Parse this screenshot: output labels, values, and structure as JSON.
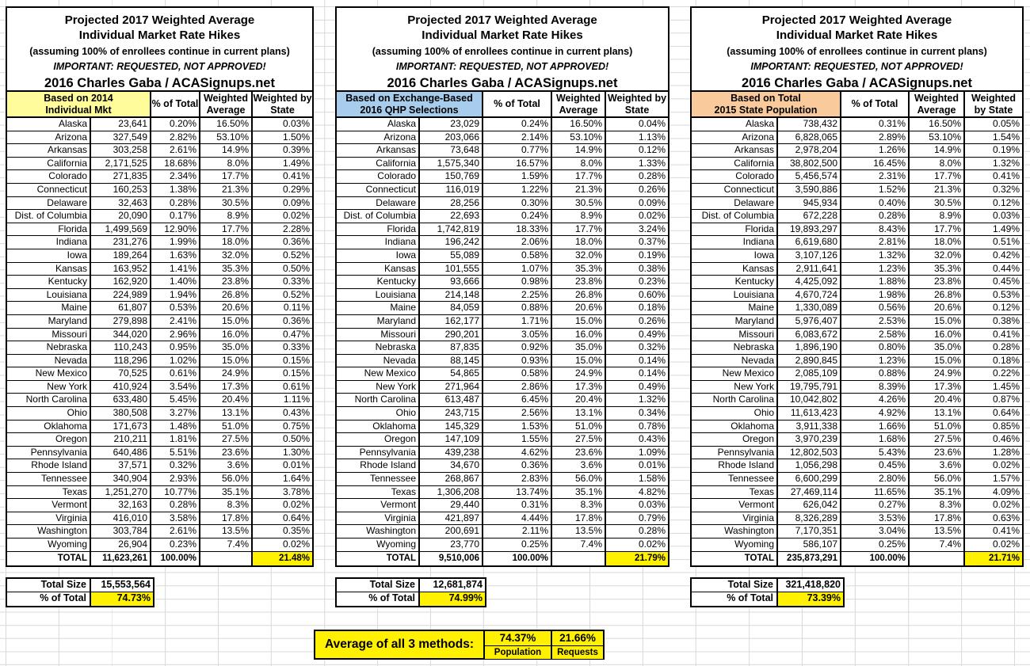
{
  "title_block": {
    "line1": "Projected 2017 Weighted Average",
    "line2": "Individual Market Rate Hikes",
    "line3": "(assuming 100% of enrollees continue in current plans)",
    "line4": "IMPORTANT: REQUESTED, NOT APPROVED!",
    "line5": "2016 Charles Gaba / ACASignups.net"
  },
  "columns": [
    "% of Total",
    "Weighted Average",
    "Weighted by State"
  ],
  "colors": {
    "highlight": "#FFF100",
    "table1_header": "#FFFC99",
    "table2_header": "#A8CCEC",
    "table3_header": "#F9CB9C",
    "gridline": "#D9D9D9"
  },
  "tables": [
    {
      "based_on_line1": "Based on 2014",
      "based_on_line2": "Individual Mkt",
      "header_color": "#FFFC99",
      "rows": [
        [
          "Alaska",
          "23,641",
          "0.20%",
          "16.50%",
          "0.03%"
        ],
        [
          "Arizona",
          "327,549",
          "2.82%",
          "53.10%",
          "1.50%"
        ],
        [
          "Arkansas",
          "303,258",
          "2.61%",
          "14.9%",
          "0.39%"
        ],
        [
          "California",
          "2,171,525",
          "18.68%",
          "8.0%",
          "1.49%"
        ],
        [
          "Colorado",
          "271,835",
          "2.34%",
          "17.7%",
          "0.41%"
        ],
        [
          "Connecticut",
          "160,253",
          "1.38%",
          "21.3%",
          "0.29%"
        ],
        [
          "Delaware",
          "32,463",
          "0.28%",
          "30.5%",
          "0.09%"
        ],
        [
          "Dist. of Columbia",
          "20,090",
          "0.17%",
          "8.9%",
          "0.02%"
        ],
        [
          "Florida",
          "1,499,569",
          "12.90%",
          "17.7%",
          "2.28%"
        ],
        [
          "Indiana",
          "231,276",
          "1.99%",
          "18.0%",
          "0.36%"
        ],
        [
          "Iowa",
          "189,264",
          "1.63%",
          "32.0%",
          "0.52%"
        ],
        [
          "Kansas",
          "163,952",
          "1.41%",
          "35.3%",
          "0.50%"
        ],
        [
          "Kentucky",
          "162,920",
          "1.40%",
          "23.8%",
          "0.33%"
        ],
        [
          "Louisiana",
          "224,989",
          "1.94%",
          "26.8%",
          "0.52%"
        ],
        [
          "Maine",
          "61,807",
          "0.53%",
          "20.6%",
          "0.11%"
        ],
        [
          "Maryland",
          "279,898",
          "2.41%",
          "15.0%",
          "0.36%"
        ],
        [
          "Missouri",
          "344,020",
          "2.96%",
          "16.0%",
          "0.47%"
        ],
        [
          "Nebraska",
          "110,243",
          "0.95%",
          "35.0%",
          "0.33%"
        ],
        [
          "Nevada",
          "118,296",
          "1.02%",
          "15.0%",
          "0.15%"
        ],
        [
          "New Mexico",
          "70,525",
          "0.61%",
          "24.9%",
          "0.15%"
        ],
        [
          "New York",
          "410,924",
          "3.54%",
          "17.3%",
          "0.61%"
        ],
        [
          "North Carolina",
          "633,480",
          "5.45%",
          "20.4%",
          "1.11%"
        ],
        [
          "Ohio",
          "380,508",
          "3.27%",
          "13.1%",
          "0.43%"
        ],
        [
          "Oklahoma",
          "171,673",
          "1.48%",
          "51.0%",
          "0.75%"
        ],
        [
          "Oregon",
          "210,211",
          "1.81%",
          "27.5%",
          "0.50%"
        ],
        [
          "Pennsylvania",
          "640,486",
          "5.51%",
          "23.6%",
          "1.30%"
        ],
        [
          "Rhode Island",
          "37,571",
          "0.32%",
          "3.6%",
          "0.01%"
        ],
        [
          "Tennessee",
          "340,904",
          "2.93%",
          "56.0%",
          "1.64%"
        ],
        [
          "Texas",
          "1,251,270",
          "10.77%",
          "35.1%",
          "3.78%"
        ],
        [
          "Vermont",
          "32,163",
          "0.28%",
          "8.3%",
          "0.02%"
        ],
        [
          "Virginia",
          "416,010",
          "3.58%",
          "17.8%",
          "0.64%"
        ],
        [
          "Washington",
          "303,784",
          "2.61%",
          "13.5%",
          "0.35%"
        ],
        [
          "Wyoming",
          "26,904",
          "0.23%",
          "7.4%",
          "0.02%"
        ]
      ],
      "total_label": "TOTAL",
      "total_value": "11,623,261",
      "total_pct": "100.00%",
      "total_weighted": "21.48%",
      "total_size_label": "Total Size",
      "total_size_value": "15,553,564",
      "pct_of_total_label": "% of Total",
      "pct_of_total_value": "74.73%"
    },
    {
      "based_on_line1": "Based on Exchange-Based",
      "based_on_line2": "2016 QHP Selections",
      "header_color": "#A8CCEC",
      "rows": [
        [
          "Alaska",
          "23,029",
          "0.24%",
          "16.50%",
          "0.04%"
        ],
        [
          "Arizona",
          "203,066",
          "2.14%",
          "53.10%",
          "1.13%"
        ],
        [
          "Arkansas",
          "73,648",
          "0.77%",
          "14.9%",
          "0.12%"
        ],
        [
          "California",
          "1,575,340",
          "16.57%",
          "8.0%",
          "1.33%"
        ],
        [
          "Colorado",
          "150,769",
          "1.59%",
          "17.7%",
          "0.28%"
        ],
        [
          "Connecticut",
          "116,019",
          "1.22%",
          "21.3%",
          "0.26%"
        ],
        [
          "Delaware",
          "28,256",
          "0.30%",
          "30.5%",
          "0.09%"
        ],
        [
          "Dist. of Columbia",
          "22,693",
          "0.24%",
          "8.9%",
          "0.02%"
        ],
        [
          "Florida",
          "1,742,819",
          "18.33%",
          "17.7%",
          "3.24%"
        ],
        [
          "Indiana",
          "196,242",
          "2.06%",
          "18.0%",
          "0.37%"
        ],
        [
          "Iowa",
          "55,089",
          "0.58%",
          "32.0%",
          "0.19%"
        ],
        [
          "Kansas",
          "101,555",
          "1.07%",
          "35.3%",
          "0.38%"
        ],
        [
          "Kentucky",
          "93,666",
          "0.98%",
          "23.8%",
          "0.23%"
        ],
        [
          "Louisiana",
          "214,148",
          "2.25%",
          "26.8%",
          "0.60%"
        ],
        [
          "Maine",
          "84,059",
          "0.88%",
          "20.6%",
          "0.18%"
        ],
        [
          "Maryland",
          "162,177",
          "1.71%",
          "15.0%",
          "0.26%"
        ],
        [
          "Missouri",
          "290,201",
          "3.05%",
          "16.0%",
          "0.49%"
        ],
        [
          "Nebraska",
          "87,835",
          "0.92%",
          "35.0%",
          "0.32%"
        ],
        [
          "Nevada",
          "88,145",
          "0.93%",
          "15.0%",
          "0.14%"
        ],
        [
          "New Mexico",
          "54,865",
          "0.58%",
          "24.9%",
          "0.14%"
        ],
        [
          "New York",
          "271,964",
          "2.86%",
          "17.3%",
          "0.49%"
        ],
        [
          "North Carolina",
          "613,487",
          "6.45%",
          "20.4%",
          "1.32%"
        ],
        [
          "Ohio",
          "243,715",
          "2.56%",
          "13.1%",
          "0.34%"
        ],
        [
          "Oklahoma",
          "145,329",
          "1.53%",
          "51.0%",
          "0.78%"
        ],
        [
          "Oregon",
          "147,109",
          "1.55%",
          "27.5%",
          "0.43%"
        ],
        [
          "Pennsylvania",
          "439,238",
          "4.62%",
          "23.6%",
          "1.09%"
        ],
        [
          "Rhode Island",
          "34,670",
          "0.36%",
          "3.6%",
          "0.01%"
        ],
        [
          "Tennessee",
          "268,867",
          "2.83%",
          "56.0%",
          "1.58%"
        ],
        [
          "Texas",
          "1,306,208",
          "13.74%",
          "35.1%",
          "4.82%"
        ],
        [
          "Vermont",
          "29,440",
          "0.31%",
          "8.3%",
          "0.03%"
        ],
        [
          "Virginia",
          "421,897",
          "4.44%",
          "17.8%",
          "0.79%"
        ],
        [
          "Washington",
          "200,691",
          "2.11%",
          "13.5%",
          "0.28%"
        ],
        [
          "Wyoming",
          "23,770",
          "0.25%",
          "7.4%",
          "0.02%"
        ]
      ],
      "total_label": "TOTAL",
      "total_value": "9,510,006",
      "total_pct": "100.00%",
      "total_weighted": "21.79%",
      "total_size_label": "Total Size",
      "total_size_value": "12,681,874",
      "pct_of_total_label": "% of Total",
      "pct_of_total_value": "74.99%"
    },
    {
      "based_on_line1": "Based on Total",
      "based_on_line2": "2015 State Population",
      "header_color": "#F9CB9C",
      "rows": [
        [
          "Alaska",
          "738,432",
          "0.31%",
          "16.50%",
          "0.05%"
        ],
        [
          "Arizona",
          "6,828,065",
          "2.89%",
          "53.10%",
          "1.54%"
        ],
        [
          "Arkansas",
          "2,978,204",
          "1.26%",
          "14.9%",
          "0.19%"
        ],
        [
          "California",
          "38,802,500",
          "16.45%",
          "8.0%",
          "1.32%"
        ],
        [
          "Colorado",
          "5,456,574",
          "2.31%",
          "17.7%",
          "0.41%"
        ],
        [
          "Connecticut",
          "3,590,886",
          "1.52%",
          "21.3%",
          "0.32%"
        ],
        [
          "Delaware",
          "945,934",
          "0.40%",
          "30.5%",
          "0.12%"
        ],
        [
          "Dist. of Columbia",
          "672,228",
          "0.28%",
          "8.9%",
          "0.03%"
        ],
        [
          "Florida",
          "19,893,297",
          "8.43%",
          "17.7%",
          "1.49%"
        ],
        [
          "Indiana",
          "6,619,680",
          "2.81%",
          "18.0%",
          "0.51%"
        ],
        [
          "Iowa",
          "3,107,126",
          "1.32%",
          "32.0%",
          "0.42%"
        ],
        [
          "Kansas",
          "2,911,641",
          "1.23%",
          "35.3%",
          "0.44%"
        ],
        [
          "Kentucky",
          "4,425,092",
          "1.88%",
          "23.8%",
          "0.45%"
        ],
        [
          "Louisiana",
          "4,670,724",
          "1.98%",
          "26.8%",
          "0.53%"
        ],
        [
          "Maine",
          "1,330,089",
          "0.56%",
          "20.6%",
          "0.12%"
        ],
        [
          "Maryland",
          "5,976,407",
          "2.53%",
          "15.0%",
          "0.38%"
        ],
        [
          "Missouri",
          "6,083,672",
          "2.58%",
          "16.0%",
          "0.41%"
        ],
        [
          "Nebraska",
          "1,896,190",
          "0.80%",
          "35.0%",
          "0.28%"
        ],
        [
          "Nevada",
          "2,890,845",
          "1.23%",
          "15.0%",
          "0.18%"
        ],
        [
          "New Mexico",
          "2,085,109",
          "0.88%",
          "24.9%",
          "0.22%"
        ],
        [
          "New York",
          "19,795,791",
          "8.39%",
          "17.3%",
          "1.45%"
        ],
        [
          "North Carolina",
          "10,042,802",
          "4.26%",
          "20.4%",
          "0.87%"
        ],
        [
          "Ohio",
          "11,613,423",
          "4.92%",
          "13.1%",
          "0.64%"
        ],
        [
          "Oklahoma",
          "3,911,338",
          "1.66%",
          "51.0%",
          "0.85%"
        ],
        [
          "Oregon",
          "3,970,239",
          "1.68%",
          "27.5%",
          "0.46%"
        ],
        [
          "Pennsylvania",
          "12,802,503",
          "5.43%",
          "23.6%",
          "1.28%"
        ],
        [
          "Rhode Island",
          "1,056,298",
          "0.45%",
          "3.6%",
          "0.02%"
        ],
        [
          "Tennessee",
          "6,600,299",
          "2.80%",
          "56.0%",
          "1.57%"
        ],
        [
          "Texas",
          "27,469,114",
          "11.65%",
          "35.1%",
          "4.09%"
        ],
        [
          "Vermont",
          "626,042",
          "0.27%",
          "8.3%",
          "0.02%"
        ],
        [
          "Virginia",
          "8,326,289",
          "3.53%",
          "17.8%",
          "0.63%"
        ],
        [
          "Washington",
          "7,170,351",
          "3.04%",
          "13.5%",
          "0.41%"
        ],
        [
          "Wyoming",
          "586,107",
          "0.25%",
          "7.4%",
          "0.02%"
        ]
      ],
      "total_label": "TOTAL",
      "total_value": "235,873,291",
      "total_pct": "100.00%",
      "total_weighted": "21.71%",
      "total_size_label": "Total Size",
      "total_size_value": "321,418,820",
      "pct_of_total_label": "% of Total",
      "pct_of_total_value": "73.39%"
    }
  ],
  "summary": {
    "label": "Average of all 3 methods:",
    "cells": [
      {
        "value": "74.37%",
        "label": "Population"
      },
      {
        "value": "21.66%",
        "label": "Requests"
      }
    ]
  }
}
